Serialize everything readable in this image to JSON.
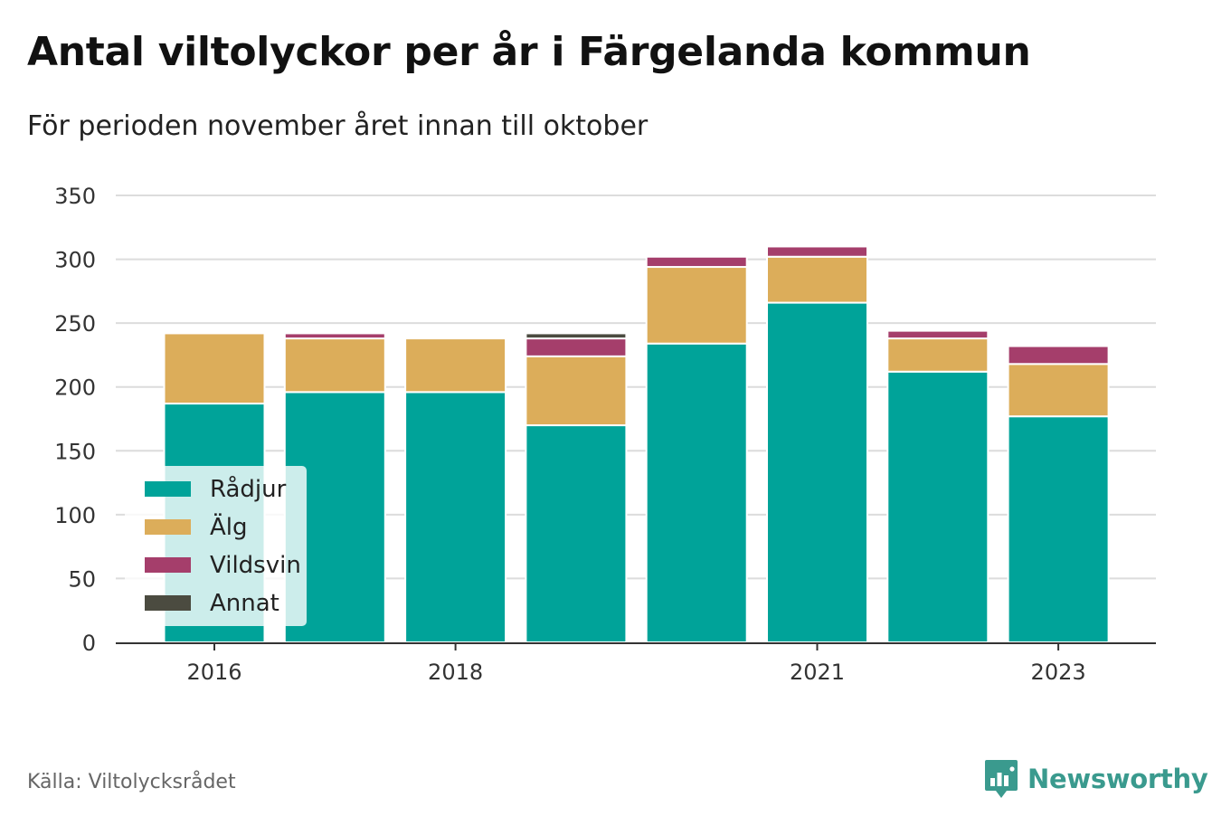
{
  "chart_data": {
    "type": "bar",
    "stacked": true,
    "title": "Antal viltolyckor per år i Färgelanda kommun",
    "subtitle": "För perioden november året innan till oktober",
    "x": [
      2016,
      2017,
      2018,
      2019,
      2020,
      2021,
      2022,
      2023
    ],
    "x_tick_labels": [
      {
        "x": 2016,
        "label": "2016"
      },
      {
        "x": 2018,
        "label": "2018"
      },
      {
        "x": 2021,
        "label": "2021"
      },
      {
        "x": 2023,
        "label": "2023"
      }
    ],
    "series": [
      {
        "name": "Rådjur",
        "color": "#00a399",
        "values": [
          187,
          196,
          196,
          170,
          234,
          266,
          212,
          177
        ]
      },
      {
        "name": "Älg",
        "color": "#dcad5a",
        "values": [
          55,
          42,
          42,
          54,
          60,
          36,
          26,
          41
        ]
      },
      {
        "name": "Vildsvin",
        "color": "#a53e6b",
        "values": [
          0,
          4,
          0,
          14,
          8,
          8,
          6,
          14
        ]
      },
      {
        "name": "Annat",
        "color": "#4b4b40",
        "values": [
          0,
          0,
          0,
          4,
          0,
          0,
          0,
          0
        ]
      }
    ],
    "ylim": [
      0,
      350
    ],
    "y_ticks": [
      0,
      50,
      100,
      150,
      200,
      250,
      300,
      350
    ],
    "xlabel": "",
    "ylabel": "",
    "grid": true,
    "legend_position": "bottom-left"
  },
  "source": "Källa: Viltolycksrådet",
  "brand": {
    "name": "Newsworthy",
    "icon": "newsworthy-logo-icon",
    "color": "#3a9a8e"
  }
}
